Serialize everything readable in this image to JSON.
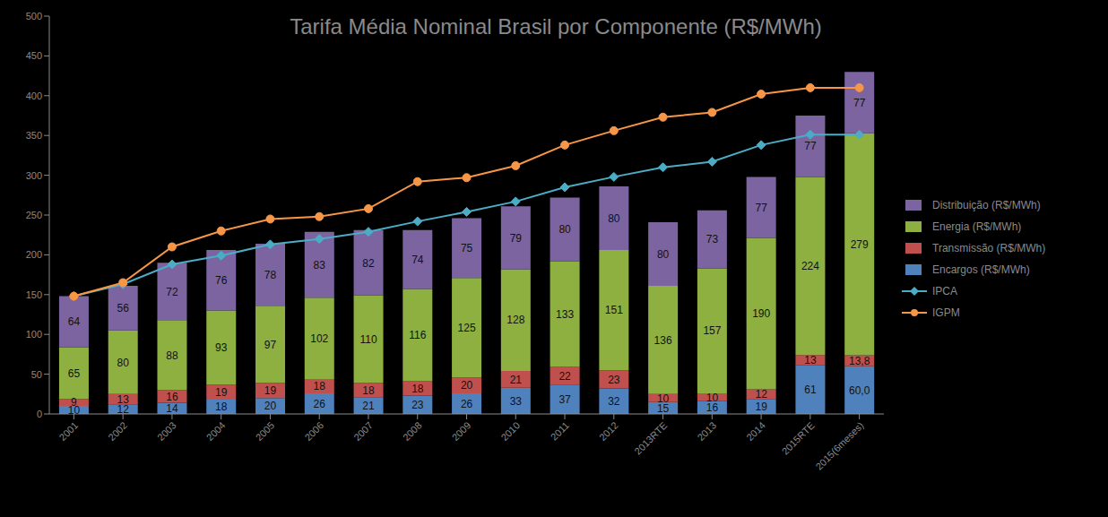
{
  "chart_data": {
    "type": "bar",
    "title": "Tarifa Média Nominal Brasil por Componente (R$/MWh)",
    "stacked": true,
    "data_labels": true,
    "grid": false,
    "legend": "right",
    "categories": [
      "2001",
      "2002",
      "2003",
      "2004",
      "2005",
      "2006",
      "2007",
      "2008",
      "2009",
      "2010",
      "2011",
      "2012",
      "2013RTE",
      "2013",
      "2014",
      "2015RTE",
      "2015(6meses)"
    ],
    "ylim": [
      0,
      500
    ],
    "yticks": [
      0,
      50,
      100,
      150,
      200,
      250,
      300,
      350,
      400,
      450,
      500
    ],
    "series": [
      {
        "name": "Distribuição (R$/MWh)",
        "type": "bar",
        "color": "#7b64a0",
        "values": [
          64,
          56,
          72,
          76,
          78,
          83,
          82,
          74,
          75,
          79,
          80,
          80,
          80,
          73,
          77,
          77,
          77
        ]
      },
      {
        "name": "Energia (R$/MWh)",
        "type": "bar",
        "color": "#8db040",
        "values": [
          65,
          80,
          88,
          93,
          97,
          102,
          110,
          116,
          125,
          128,
          133,
          151,
          136,
          157,
          190,
          224,
          279
        ]
      },
      {
        "name": "Transmissão (R$/MWh)",
        "type": "bar",
        "color": "#c0504d",
        "values": [
          9,
          13,
          16,
          19,
          19,
          18,
          18,
          18,
          20,
          21,
          22,
          23,
          10,
          10,
          12,
          13,
          13.8
        ],
        "value_labels": [
          "9",
          "13",
          "16",
          "19",
          "19",
          "18",
          "18",
          "18",
          "20",
          "21",
          "22",
          "23",
          "10",
          "10",
          "12",
          "13",
          "13,8"
        ]
      },
      {
        "name": "Encargos (R$/MWh)",
        "type": "bar",
        "color": "#4f81bd",
        "values": [
          10,
          12,
          14,
          18,
          20,
          26,
          21,
          23,
          26,
          33,
          37,
          32,
          15,
          16,
          19,
          61,
          60.0
        ],
        "value_labels": [
          "10",
          "12",
          "14",
          "18",
          "20",
          "26",
          "21",
          "23",
          "26",
          "33",
          "37",
          "32",
          "15",
          "16",
          "19",
          "61",
          "60,0"
        ]
      },
      {
        "name": "IPCA",
        "type": "line",
        "color": "#4bacc6",
        "marker": "diamond",
        "data_labels": false,
        "values": [
          148,
          163,
          188,
          199,
          213,
          220,
          229,
          242,
          254,
          267,
          285,
          298,
          310,
          317,
          338,
          351,
          351
        ]
      },
      {
        "name": "IGPM",
        "type": "line",
        "color": "#f79646",
        "marker": "circle",
        "data_labels": false,
        "values": [
          148,
          165,
          210,
          230,
          245,
          248,
          258,
          292,
          297,
          312,
          338,
          356,
          373,
          379,
          402,
          410,
          410
        ]
      }
    ]
  }
}
